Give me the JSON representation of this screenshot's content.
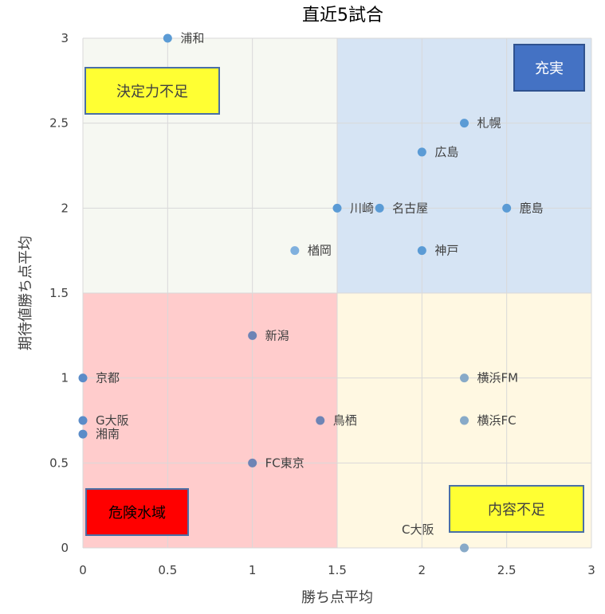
{
  "chart_data": {
    "type": "scatter",
    "title": "直近5試合",
    "xlabel": "勝ち点平均",
    "ylabel": "期待値勝ち点平均",
    "xlim": [
      0,
      3
    ],
    "ylim": [
      0,
      3
    ],
    "xticks": [
      0,
      0.5,
      1,
      1.5,
      2,
      2.5,
      3
    ],
    "xtick_labels": [
      "0",
      "0.5",
      "1",
      "1.5",
      "2",
      "2.5",
      "3"
    ],
    "yticks": [
      0,
      0.5,
      1,
      1.5,
      2,
      2.5,
      3
    ],
    "ytick_labels": [
      "0",
      "0.5",
      "1",
      "1.5",
      "2",
      "2.5",
      "3"
    ],
    "grid": true,
    "quadrants": [
      {
        "name": "top-left",
        "x": [
          0,
          1.5
        ],
        "y": [
          1.5,
          3
        ],
        "color": "#f6f8f2"
      },
      {
        "name": "top-right",
        "x": [
          1.5,
          3
        ],
        "y": [
          1.5,
          3
        ],
        "color": "#d6e4f4"
      },
      {
        "name": "bottom-left",
        "x": [
          0,
          1.5
        ],
        "y": [
          0,
          1.5
        ],
        "color": "#ffcccc"
      },
      {
        "name": "bottom-right",
        "x": [
          1.5,
          3
        ],
        "y": [
          0,
          1.5
        ],
        "color": "#fff8e2"
      }
    ],
    "zone_labels": [
      {
        "text": "決定力不足",
        "position": "top-left",
        "bg": "#ffff33",
        "fg": "#404040",
        "border": "#4a6fa5"
      },
      {
        "text": "充実",
        "position": "top-right",
        "bg": "#4472c4",
        "fg": "#ffffff",
        "border": "#2f528f"
      },
      {
        "text": "危険水域",
        "position": "bottom-left",
        "bg": "#ff0000",
        "fg": "#000000",
        "border": "#4a6fa5"
      },
      {
        "text": "内容不足",
        "position": "bottom-right",
        "bg": "#ffff33",
        "fg": "#404040",
        "border": "#4a6fa5"
      }
    ],
    "points": [
      {
        "label": "浦和",
        "x": 0.5,
        "y": 3.0,
        "color": "#5b9bd5"
      },
      {
        "label": "札幌",
        "x": 2.25,
        "y": 2.5,
        "color": "#5b9bd5"
      },
      {
        "label": "広島",
        "x": 2.0,
        "y": 2.33,
        "color": "#5b9bd5"
      },
      {
        "label": "川崎",
        "x": 1.5,
        "y": 2.0,
        "color": "#5b9bd5"
      },
      {
        "label": "名古屋",
        "x": 1.75,
        "y": 2.0,
        "color": "#5b9bd5"
      },
      {
        "label": "鹿島",
        "x": 2.5,
        "y": 2.0,
        "color": "#5b9bd5"
      },
      {
        "label": "楢岡",
        "x": 1.25,
        "y": 1.75,
        "color": "#7fb0de"
      },
      {
        "label": "神戸",
        "x": 2.0,
        "y": 1.75,
        "color": "#5b9bd5"
      },
      {
        "label": "新潟",
        "x": 1.0,
        "y": 1.25,
        "color": "#6e84b5"
      },
      {
        "label": "京都",
        "x": 0.0,
        "y": 1.0,
        "color": "#5b8cc8"
      },
      {
        "label": "横浜FM",
        "x": 2.25,
        "y": 1.0,
        "color": "#88aac8"
      },
      {
        "label": "G大阪",
        "x": 0.0,
        "y": 0.75,
        "color": "#5b8cc8"
      },
      {
        "label": "鳥栖",
        "x": 1.4,
        "y": 0.75,
        "color": "#6e84b5"
      },
      {
        "label": "横浜FC",
        "x": 2.25,
        "y": 0.75,
        "color": "#88aac8"
      },
      {
        "label": "湘南",
        "x": 0.0,
        "y": 0.67,
        "color": "#5b8cc8"
      },
      {
        "label": "FC東京",
        "x": 1.0,
        "y": 0.5,
        "color": "#6e84b5"
      },
      {
        "label": "C大阪",
        "x": 2.25,
        "y": 0.0,
        "color": "#88aac8",
        "label_side": "left-above"
      }
    ]
  }
}
